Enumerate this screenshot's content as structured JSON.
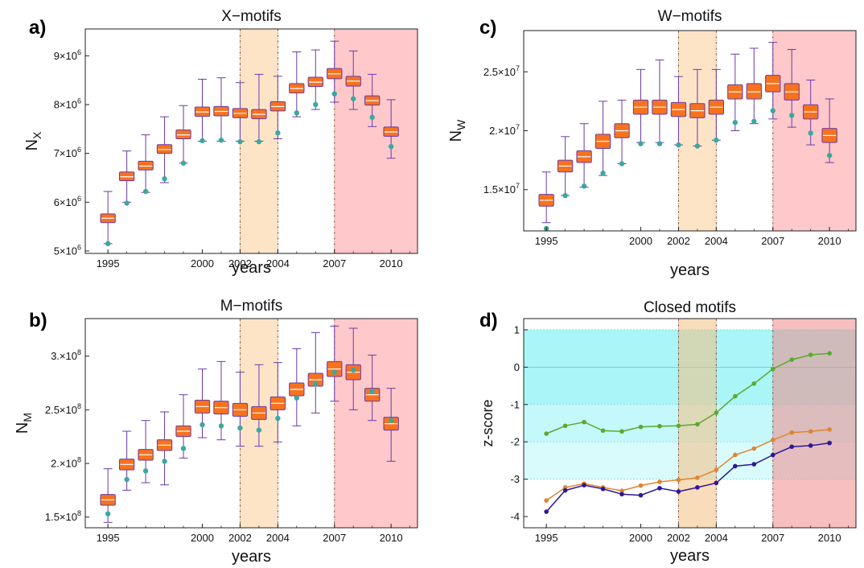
{
  "figure": {
    "colors": {
      "box_fill": "#f7721f",
      "box_stroke": "#6a3aa8",
      "whisker": "#6a3aa8",
      "median": "#ffffff",
      "empirical_dot": "#3aa8a0",
      "band_orange": "#fde4c7",
      "band_red": "#ffc8cb",
      "band_line": "#8a4a3a",
      "zcore_cyan": "#a9f5f7",
      "zcore_cyan_light": "#d9fbfc",
      "series_green": "#5aaa2c",
      "series_orange": "#de8532",
      "series_purple": "#2e1796"
    }
  },
  "chart_data": [
    {
      "panel": "a)",
      "type": "box",
      "title": "X−motifs",
      "xlabel": "years",
      "ylabel_base": "N",
      "ylabel_sub": "X",
      "xlim": [
        1993.8,
        2011.4
      ],
      "ylim": [
        4.95,
        9.55
      ],
      "xticks": [
        1995,
        2000,
        2002,
        2004,
        2007,
        2010
      ],
      "yticks": [
        {
          "v": 5,
          "base": "5×10",
          "exp": "6"
        },
        {
          "v": 6,
          "base": "6×10",
          "exp": "6"
        },
        {
          "v": 7,
          "base": "7×10",
          "exp": "6"
        },
        {
          "v": 8,
          "base": "8×10",
          "exp": "6"
        },
        {
          "v": 9,
          "base": "9×10",
          "exp": "6"
        }
      ],
      "bands": [
        {
          "from": 2002,
          "to": 2004,
          "color": "orange"
        },
        {
          "from": 2007,
          "to": 2011.4,
          "color": "red"
        }
      ],
      "years": [
        1995,
        1996,
        1997,
        1998,
        1999,
        2000,
        2001,
        2002,
        2003,
        2004,
        2005,
        2006,
        2007,
        2008,
        2009,
        2010
      ],
      "median": [
        5.67,
        6.52,
        6.74,
        7.08,
        7.38,
        7.85,
        7.86,
        7.82,
        7.8,
        7.96,
        8.33,
        8.46,
        8.63,
        8.48,
        8.08,
        7.44
      ],
      "q1": [
        5.58,
        6.44,
        6.66,
        7.0,
        7.3,
        7.76,
        7.77,
        7.73,
        7.71,
        7.87,
        8.24,
        8.37,
        8.53,
        8.38,
        7.99,
        7.35
      ],
      "q3": [
        5.76,
        6.62,
        6.84,
        7.18,
        7.48,
        7.95,
        7.96,
        7.92,
        7.9,
        8.06,
        8.43,
        8.56,
        8.74,
        8.58,
        8.18,
        7.54
      ],
      "whisker_low": [
        5.15,
        6.0,
        6.2,
        6.4,
        6.8,
        7.25,
        7.25,
        7.25,
        7.25,
        7.3,
        7.75,
        7.9,
        8.05,
        7.9,
        7.55,
        6.9
      ],
      "whisker_high": [
        6.22,
        7.05,
        7.38,
        7.75,
        7.98,
        8.52,
        8.55,
        8.45,
        8.62,
        8.58,
        9.08,
        9.12,
        9.3,
        9.1,
        8.62,
        8.1
      ],
      "empirical": [
        5.15,
        5.98,
        6.22,
        6.48,
        6.8,
        7.26,
        7.27,
        7.24,
        7.24,
        7.42,
        7.83,
        8.0,
        8.22,
        8.12,
        7.74,
        7.14
      ]
    },
    {
      "panel": "c)",
      "type": "box",
      "title": "W−motifs",
      "xlabel": "years",
      "ylabel_base": "N",
      "ylabel_sub": "W",
      "xlim": [
        1993.8,
        2011.4
      ],
      "ylim": [
        1.15,
        2.85
      ],
      "xticks": [
        1995,
        2000,
        2002,
        2004,
        2007,
        2010
      ],
      "yticks": [
        {
          "v": 1.5,
          "base": "1.5×10",
          "exp": "7"
        },
        {
          "v": 2.0,
          "base": "2.×10",
          "exp": "7"
        },
        {
          "v": 2.5,
          "base": "2.5×10",
          "exp": "7"
        }
      ],
      "bands": [
        {
          "from": 2002,
          "to": 2004,
          "color": "orange"
        },
        {
          "from": 2007,
          "to": 2011.4,
          "color": "red"
        }
      ],
      "years": [
        1995,
        1996,
        1997,
        1998,
        1999,
        2000,
        2001,
        2002,
        2003,
        2004,
        2005,
        2006,
        2007,
        2008,
        2009,
        2010
      ],
      "median": [
        1.41,
        1.7,
        1.78,
        1.91,
        2.0,
        2.2,
        2.2,
        2.18,
        2.17,
        2.2,
        2.33,
        2.33,
        2.4,
        2.33,
        2.16,
        1.96
      ],
      "q1": [
        1.36,
        1.65,
        1.73,
        1.85,
        1.94,
        2.14,
        2.14,
        2.12,
        2.11,
        2.14,
        2.27,
        2.27,
        2.33,
        2.26,
        2.1,
        1.9
      ],
      "q3": [
        1.46,
        1.75,
        1.83,
        1.97,
        2.06,
        2.26,
        2.26,
        2.24,
        2.23,
        2.26,
        2.39,
        2.4,
        2.47,
        2.4,
        2.22,
        2.02
      ],
      "whisker_low": [
        1.22,
        1.45,
        1.52,
        1.62,
        1.72,
        1.9,
        1.9,
        1.88,
        1.87,
        1.92,
        2.0,
        2.06,
        2.1,
        2.03,
        1.88,
        1.73
      ],
      "whisker_high": [
        1.65,
        1.95,
        2.06,
        2.25,
        2.26,
        2.52,
        2.6,
        2.46,
        2.52,
        2.52,
        2.65,
        2.7,
        2.75,
        2.69,
        2.43,
        2.27
      ],
      "empirical": [
        1.17,
        1.45,
        1.53,
        1.64,
        1.72,
        1.89,
        1.89,
        1.88,
        1.87,
        1.92,
        2.07,
        2.08,
        2.17,
        2.13,
        1.98,
        1.79
      ]
    },
    {
      "panel": "b)",
      "type": "box",
      "title": "M−motifs",
      "xlabel": "years",
      "ylabel_base": "N",
      "ylabel_sub": "M",
      "xlim": [
        1993.8,
        2011.4
      ],
      "ylim": [
        1.4,
        3.35
      ],
      "xticks": [
        1995,
        2000,
        2002,
        2004,
        2007,
        2010
      ],
      "yticks": [
        {
          "v": 1.5,
          "base": "1.5×10",
          "exp": "8"
        },
        {
          "v": 2.0,
          "base": "2.×10",
          "exp": "8"
        },
        {
          "v": 2.5,
          "base": "2.5×10",
          "exp": "8"
        },
        {
          "v": 3.0,
          "base": "3.×10",
          "exp": "8"
        }
      ],
      "bands": [
        {
          "from": 2002,
          "to": 2004,
          "color": "orange"
        },
        {
          "from": 2007,
          "to": 2011.4,
          "color": "red"
        }
      ],
      "years": [
        1995,
        1996,
        1997,
        1998,
        1999,
        2000,
        2001,
        2002,
        2003,
        2004,
        2005,
        2006,
        2007,
        2008,
        2009,
        2010
      ],
      "median": [
        1.66,
        1.99,
        2.08,
        2.17,
        2.3,
        2.53,
        2.52,
        2.5,
        2.47,
        2.56,
        2.69,
        2.78,
        2.88,
        2.85,
        2.64,
        2.37
      ],
      "q1": [
        1.61,
        1.94,
        2.03,
        2.12,
        2.25,
        2.47,
        2.46,
        2.44,
        2.41,
        2.5,
        2.63,
        2.72,
        2.81,
        2.78,
        2.58,
        2.31
      ],
      "q3": [
        1.71,
        2.04,
        2.13,
        2.22,
        2.35,
        2.59,
        2.58,
        2.56,
        2.53,
        2.62,
        2.75,
        2.84,
        2.95,
        2.92,
        2.7,
        2.43
      ],
      "whisker_low": [
        1.45,
        1.75,
        1.82,
        1.8,
        2.05,
        2.24,
        2.22,
        2.16,
        2.16,
        2.2,
        2.35,
        2.47,
        2.58,
        2.5,
        2.4,
        2.02
      ],
      "whisker_high": [
        1.95,
        2.3,
        2.4,
        2.48,
        2.64,
        2.88,
        2.95,
        2.85,
        2.92,
        2.94,
        3.07,
        3.22,
        3.28,
        3.26,
        3.01,
        2.7
      ],
      "empirical": [
        1.53,
        1.85,
        1.93,
        2.02,
        2.14,
        2.36,
        2.35,
        2.33,
        2.31,
        2.42,
        2.61,
        2.74,
        2.85,
        2.87,
        2.67,
        2.4
      ]
    },
    {
      "panel": "d)",
      "type": "line",
      "title": "Closed motifs",
      "xlabel": "years",
      "ylabel": "z-score",
      "xlim": [
        1993.8,
        2011.4
      ],
      "ylim": [
        -4.3,
        1.3
      ],
      "xticks": [
        1995,
        2000,
        2002,
        2004,
        2007,
        2010
      ],
      "yticks": [
        {
          "v": 1,
          "label": "1"
        },
        {
          "v": 0,
          "label": "0"
        },
        {
          "v": -1,
          "label": "-1"
        },
        {
          "v": -2,
          "label": "-2"
        },
        {
          "v": -3,
          "label": "-3"
        },
        {
          "v": -4,
          "label": "-4"
        }
      ],
      "regions": [
        {
          "from": -1,
          "to": 1,
          "color": "cyan"
        },
        {
          "from": -2,
          "to": -1,
          "color": "cyan_light"
        },
        {
          "from": -3,
          "to": -2,
          "color": "cyan_mid"
        }
      ],
      "bands": [
        {
          "from": 2002,
          "to": 2004,
          "color": "orange"
        },
        {
          "from": 2007,
          "to": 2011.4,
          "color": "red"
        }
      ],
      "x": [
        1995,
        1996,
        1997,
        1998,
        1999,
        2000,
        2001,
        2002,
        2003,
        2004,
        2005,
        2006,
        2007,
        2008,
        2009,
        2010
      ],
      "series": [
        {
          "color": "green",
          "values": [
            -1.78,
            -1.57,
            -1.47,
            -1.7,
            -1.72,
            -1.6,
            -1.58,
            -1.57,
            -1.53,
            -1.22,
            -0.78,
            -0.44,
            -0.05,
            0.2,
            0.33,
            0.37
          ]
        },
        {
          "color": "orange",
          "values": [
            -3.57,
            -3.22,
            -3.12,
            -3.22,
            -3.31,
            -3.17,
            -3.07,
            -3.02,
            -2.96,
            -2.75,
            -2.35,
            -2.18,
            -1.95,
            -1.75,
            -1.72,
            -1.67
          ]
        },
        {
          "color": "purple",
          "values": [
            -3.87,
            -3.3,
            -3.16,
            -3.26,
            -3.4,
            -3.43,
            -3.24,
            -3.33,
            -3.22,
            -3.1,
            -2.65,
            -2.6,
            -2.35,
            -2.13,
            -2.1,
            -2.03
          ]
        }
      ]
    }
  ]
}
